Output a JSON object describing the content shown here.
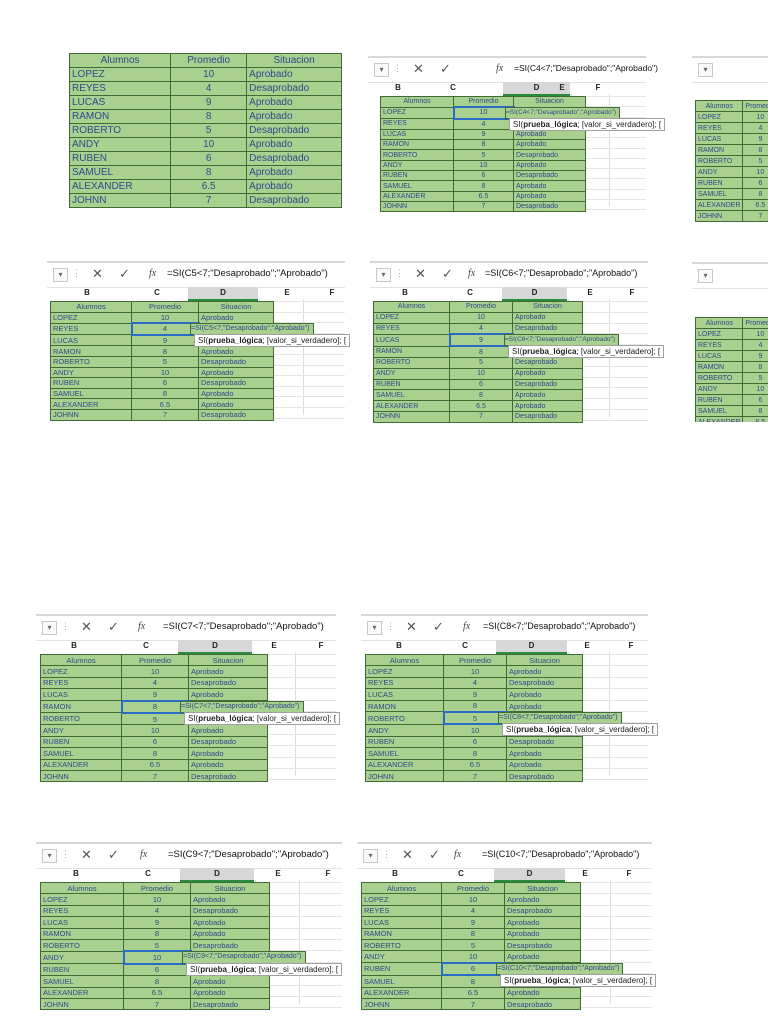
{
  "header": [
    "Alumnos",
    "Promedio",
    "Situacion"
  ],
  "rows": [
    [
      "LOPEZ",
      "10",
      "Aprobado"
    ],
    [
      "REYES",
      "4",
      "Desaprobado"
    ],
    [
      "LUCAS",
      "9",
      "Aprobado"
    ],
    [
      "RAMON",
      "8",
      "Aprobado"
    ],
    [
      "ROBERTO",
      "5",
      "Desaprobado"
    ],
    [
      "ANDY",
      "10",
      "Aprobado"
    ],
    [
      "RUBEN",
      "6",
      "Desaprobado"
    ],
    [
      "SAMUEL",
      "8",
      "Aprobado"
    ],
    [
      "ALEXANDER",
      "6.5",
      "Aprobado"
    ],
    [
      "JOHNN",
      "7",
      "Desaprobado"
    ]
  ],
  "col_letters": [
    "B",
    "C",
    "D",
    "E",
    "F"
  ],
  "fx_label": "fx",
  "tooltip": {
    "fn": "SI(",
    "arg1": "prueba_lógica",
    "rest": "; [valor_si_verdadero]; ["
  },
  "panels": [
    {
      "formula": "=SI(C4<7;\"Desaprobado\";\"Aprobado\")",
      "cell_formula": "=SI(C4<7;\"Desaprobado\";\"Aprobado\")"
    },
    {
      "formula": "=SI(C5<7;\"Desaprobado\";\"Aprobado\")",
      "cell_formula": "=SI(C5<7;\"Desaprobado\";\"Aprobado\")"
    },
    {
      "formula": "=SI(C6<7;\"Desaprobado\";\"Aprobado\")",
      "cell_formula": "=SI(C6<7;\"Desaprobado\";\"Aprobado\")"
    },
    {
      "formula": "=SI(C7<7;\"Desaprobado\";\"Aprobado\")",
      "cell_formula": "=SI(C7<7;\"Desaprobado\";\"Aprobado\")"
    },
    {
      "formula": "=SI(C8<7;\"Desaprobado\";\"Aprobado\")",
      "cell_formula": "=SI(C8<7;\"Desaprobado\";\"Aprobado\")"
    },
    {
      "formula": "=SI(C9<7;\"Desaprobado\";\"Aprobado\")",
      "cell_formula": "=SI(C9<7;\"Desaprobado\";\"Aprobado\")"
    },
    {
      "formula": "=SI(C10<7;\"Desaprobado\";\"Aprobado\")",
      "cell_formula": "=SI(C10<7;\"Desaprobado\";\"Aprobado\")"
    }
  ]
}
